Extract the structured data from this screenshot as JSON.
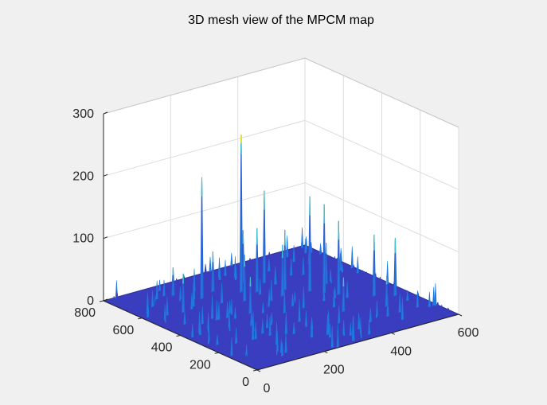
{
  "chart_data": {
    "type": "mesh3d",
    "title": "3D mesh view of the MPCM map",
    "xlabel": "",
    "ylabel": "",
    "zlabel": "",
    "x_range": [
      0,
      600
    ],
    "y_range": [
      0,
      800
    ],
    "z_range": [
      0,
      300
    ],
    "x_ticks": [
      0,
      200,
      400,
      600
    ],
    "y_ticks": [
      0,
      200,
      400,
      600,
      800
    ],
    "z_ticks": [
      0,
      100,
      200,
      300
    ],
    "x_tick_labels": [
      "0",
      "200",
      "400",
      "600"
    ],
    "y_tick_labels": [
      "0",
      "200",
      "400",
      "600",
      "800"
    ],
    "z_tick_labels": [
      "0",
      "100",
      "200",
      "300"
    ],
    "grid": true,
    "colormap": "parula",
    "peaks": [
      {
        "x": 290,
        "y": 590,
        "z": 252
      },
      {
        "x": 190,
        "y": 620,
        "z": 195
      },
      {
        "x": 420,
        "y": 460,
        "z": 152
      },
      {
        "x": 440,
        "y": 420,
        "z": 142
      },
      {
        "x": 370,
        "y": 610,
        "z": 148
      },
      {
        "x": 460,
        "y": 380,
        "z": 118
      },
      {
        "x": 520,
        "y": 300,
        "z": 98
      },
      {
        "x": 560,
        "y": 260,
        "z": 92
      },
      {
        "x": 100,
        "y": 560,
        "z": 62
      },
      {
        "x": 150,
        "y": 700,
        "z": 45
      },
      {
        "x": 320,
        "y": 560,
        "z": 102
      },
      {
        "x": 350,
        "y": 480,
        "z": 82
      },
      {
        "x": 260,
        "y": 520,
        "z": 74
      },
      {
        "x": 220,
        "y": 420,
        "z": 58
      },
      {
        "x": 400,
        "y": 250,
        "z": 54
      },
      {
        "x": 480,
        "y": 480,
        "z": 66
      },
      {
        "x": 500,
        "y": 200,
        "z": 48
      },
      {
        "x": 330,
        "y": 650,
        "z": 85
      },
      {
        "x": 240,
        "y": 650,
        "z": 64
      },
      {
        "x": 380,
        "y": 520,
        "z": 96
      }
    ],
    "colors": {
      "background": "#f0f0f0",
      "axes": "#ffffff",
      "grid": "#dcdcdc",
      "axis_line": "#262626",
      "surface_low": "#3a3dbf",
      "surface_mid": "#1f79e0",
      "surface_high": "#3fc0c8",
      "surface_peak": "#e0de3a"
    }
  }
}
